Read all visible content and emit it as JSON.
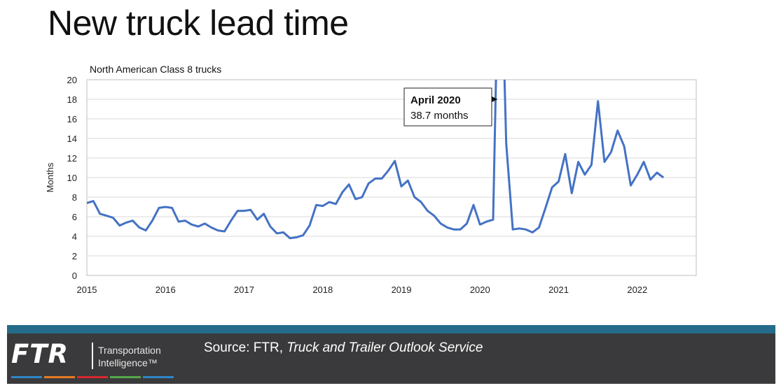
{
  "slide": {
    "title": "New truck lead time"
  },
  "chart_data": {
    "type": "line",
    "subtitle": "North American Class 8 trucks",
    "ylabel": "Months",
    "xlabel": "",
    "ylim": [
      0,
      20
    ],
    "yticks": [
      0,
      2,
      4,
      6,
      8,
      10,
      12,
      14,
      16,
      18,
      20
    ],
    "xlim": [
      2015.0,
      2022.75
    ],
    "xticks": [
      "2015",
      "2016",
      "2017",
      "2018",
      "2019",
      "2020",
      "2021",
      "2022"
    ],
    "grid": true,
    "line_color": "#4472c4",
    "series": [
      {
        "x": [
          2015.0,
          2015.083,
          2015.167,
          2015.25,
          2015.333,
          2015.417,
          2015.5,
          2015.583,
          2015.667,
          2015.75,
          2015.833,
          2015.917,
          2016.0,
          2016.083,
          2016.167,
          2016.25,
          2016.333,
          2016.417,
          2016.5,
          2016.583,
          2016.667,
          2016.75,
          2016.833,
          2016.917,
          2017.0,
          2017.083,
          2017.167,
          2017.25,
          2017.333,
          2017.417,
          2017.5,
          2017.583,
          2017.667,
          2017.75,
          2017.833,
          2017.917,
          2018.0,
          2018.083,
          2018.167,
          2018.25,
          2018.333,
          2018.417,
          2018.5,
          2018.583,
          2018.667,
          2018.75,
          2018.833,
          2018.917,
          2019.0,
          2019.083,
          2019.167,
          2019.25,
          2019.333,
          2019.417,
          2019.5,
          2019.583,
          2019.667,
          2019.75,
          2019.833,
          2019.917,
          2020.0,
          2020.083,
          2020.167,
          2020.25,
          2020.333,
          2020.417,
          2020.5,
          2020.583,
          2020.667,
          2020.75,
          2020.833,
          2020.917,
          2021.0,
          2021.083,
          2021.167,
          2021.25,
          2021.333,
          2021.417,
          2021.5,
          2021.583,
          2021.667,
          2021.75,
          2021.833,
          2021.917,
          2022.0,
          2022.083,
          2022.167,
          2022.25,
          2022.333,
          2022.417
        ],
        "values": [
          7.4,
          7.6,
          6.3,
          6.1,
          5.9,
          5.1,
          5.4,
          5.6,
          4.9,
          4.6,
          5.6,
          6.9,
          7.0,
          6.9,
          5.5,
          5.6,
          5.2,
          5.0,
          5.3,
          4.9,
          4.6,
          4.5,
          5.6,
          6.6,
          6.6,
          6.7,
          5.7,
          6.3,
          5.0,
          4.3,
          4.4,
          3.8,
          3.9,
          4.1,
          5.1,
          7.2,
          7.1,
          7.5,
          7.3,
          8.5,
          9.3,
          7.8,
          8.0,
          9.4,
          9.9,
          9.9,
          10.7,
          11.7,
          9.1,
          9.7,
          8.0,
          7.5,
          6.6,
          6.1,
          5.3,
          4.9,
          4.7,
          4.7,
          5.3,
          7.2,
          5.2,
          5.5,
          5.7,
          38.7,
          13.5,
          4.7,
          4.8,
          4.7,
          4.4,
          4.9,
          6.9,
          9.0,
          9.6,
          12.4,
          8.4,
          11.6,
          10.3,
          11.3,
          17.8,
          11.6,
          12.6,
          14.8,
          13.2,
          9.2,
          10.3,
          11.6,
          9.8,
          10.5,
          10.0,
          null
        ]
      }
    ],
    "annotation": {
      "title": "April 2020",
      "text": "38.7 months",
      "target_x": 2020.25,
      "target_y": 18
    }
  },
  "footer": {
    "logo_text": "FTR",
    "logo_line1": "Transportation",
    "logo_line2": "Intelligence™",
    "source_prefix": "Source: FTR, ",
    "source_title": "Truck and Trailer Outlook Service",
    "strip_colors": [
      "#2e87c8",
      "#e57b23",
      "#d7282e",
      "#56a84a",
      "#2e87c8"
    ]
  }
}
